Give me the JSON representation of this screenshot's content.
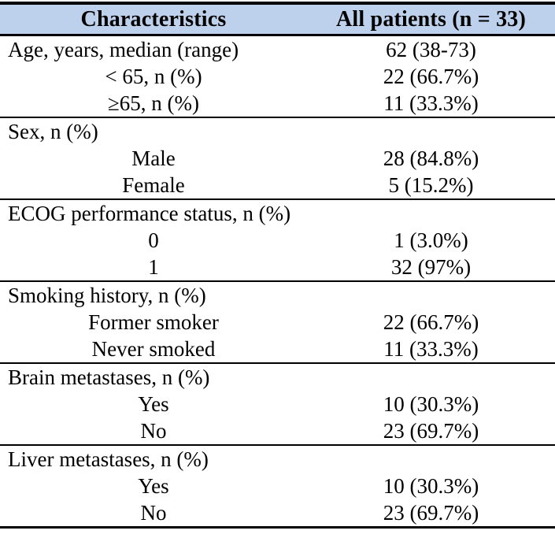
{
  "table": {
    "header": {
      "characteristics": "Characteristics",
      "all_patients": "All patients (n = 33)"
    },
    "sections": [
      {
        "name": "age",
        "rows": [
          {
            "label": "Age, years, median (range)",
            "value": "62 (38-73)",
            "indent": false
          },
          {
            "label": "< 65, n (%)",
            "value": "22 (66.7%)",
            "indent": true
          },
          {
            "label": "≥65, n (%)",
            "value": "11 (33.3%)",
            "indent": true
          }
        ]
      },
      {
        "name": "sex",
        "rows": [
          {
            "label": "Sex, n (%)",
            "value": "",
            "indent": false
          },
          {
            "label": "Male",
            "value": "28 (84.8%)",
            "indent": true
          },
          {
            "label": "Female",
            "value": "5 (15.2%)",
            "indent": true
          }
        ]
      },
      {
        "name": "ecog",
        "rows": [
          {
            "label": "ECOG performance status, n (%)",
            "value": "",
            "indent": false
          },
          {
            "label": "0",
            "value": "1 (3.0%)",
            "indent": true
          },
          {
            "label": "1",
            "value": "32 (97%)",
            "indent": true
          }
        ]
      },
      {
        "name": "smoking",
        "rows": [
          {
            "label": "Smoking history, n (%)",
            "value": "",
            "indent": false
          },
          {
            "label": "Former smoker",
            "value": "22 (66.7%)",
            "indent": true
          },
          {
            "label": "Never smoked",
            "value": "11 (33.3%)",
            "indent": true
          }
        ]
      },
      {
        "name": "brain-metastases",
        "rows": [
          {
            "label": "Brain metastases, n (%)",
            "value": "",
            "indent": false
          },
          {
            "label": "Yes",
            "value": "10 (30.3%)",
            "indent": true
          },
          {
            "label": "No",
            "value": "23 (69.7%)",
            "indent": true
          }
        ]
      },
      {
        "name": "liver-metastases",
        "rows": [
          {
            "label": "Liver metastases, n (%)",
            "value": "",
            "indent": false
          },
          {
            "label": "Yes",
            "value": "10 (30.3%)",
            "indent": true
          },
          {
            "label": "No",
            "value": "23 (69.7%)",
            "indent": true
          }
        ]
      }
    ],
    "colors": {
      "header_background": "#bdd1ec",
      "border": "#000000",
      "text": "#000000"
    }
  }
}
